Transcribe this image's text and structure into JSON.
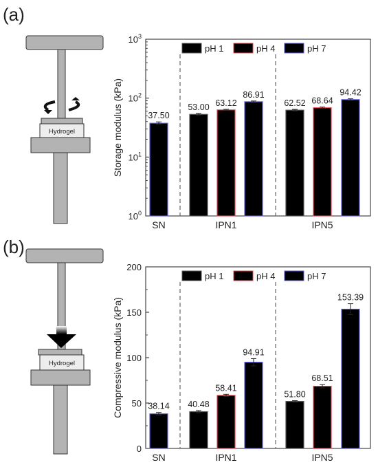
{
  "panels": [
    {
      "letter": "(a)",
      "sample_label": "Hydrogel",
      "action_icon": "rotation-arrows-icon"
    },
    {
      "letter": "(b)",
      "sample_label": "Hydrogel",
      "action_icon": "compression-arrow-icon"
    }
  ],
  "colors": {
    "pH 1": "#555555",
    "pH 4": "#e8474b",
    "pH 7": "#5a5ae6"
  },
  "chart_data": [
    {
      "type": "bar",
      "ylabel": "Storage modulus (kPa)",
      "yscale": "log",
      "ylim": [
        1,
        1000
      ],
      "yticks": [
        "10^0",
        "10^1",
        "10^2",
        "10^3"
      ],
      "groups": [
        "SN",
        "IPN1",
        "IPN5"
      ],
      "legend": [
        "pH 1",
        "pH 4",
        "pH 7"
      ],
      "legend_position": "top",
      "bars": [
        {
          "group": "SN",
          "series": "pH 7",
          "value": 37.5,
          "label": "37.50",
          "error": 2.0
        },
        {
          "group": "IPN1",
          "series": "pH 1",
          "value": 53.0,
          "label": "53.00",
          "error": 2.0
        },
        {
          "group": "IPN1",
          "series": "pH 4",
          "value": 63.12,
          "label": "63.12",
          "error": 1.5
        },
        {
          "group": "IPN1",
          "series": "pH 7",
          "value": 86.91,
          "label": "86.91",
          "error": 2.5
        },
        {
          "group": "IPN5",
          "series": "pH 1",
          "value": 62.52,
          "label": "62.52",
          "error": 2.0
        },
        {
          "group": "IPN5",
          "series": "pH 4",
          "value": 68.64,
          "label": "68.64",
          "error": 2.0
        },
        {
          "group": "IPN5",
          "series": "pH 7",
          "value": 94.42,
          "label": "94.42",
          "error": 3.0
        }
      ]
    },
    {
      "type": "bar",
      "ylabel": "Compressive modulus (kPa)",
      "yscale": "linear",
      "ylim": [
        0,
        200
      ],
      "yticks": [
        "0",
        "50",
        "100",
        "150",
        "200"
      ],
      "groups": [
        "SN",
        "IPN1",
        "IPN5"
      ],
      "legend": [
        "pH 1",
        "pH 4",
        "pH 7"
      ],
      "legend_position": "top",
      "bars": [
        {
          "group": "SN",
          "series": "pH 7",
          "value": 38.14,
          "label": "38.14",
          "error": 1.5
        },
        {
          "group": "IPN1",
          "series": "pH 1",
          "value": 40.48,
          "label": "40.48",
          "error": 1.2
        },
        {
          "group": "IPN1",
          "series": "pH 4",
          "value": 58.41,
          "label": "58.41",
          "error": 1.2
        },
        {
          "group": "IPN1",
          "series": "pH 7",
          "value": 94.91,
          "label": "94.91",
          "error": 4.0
        },
        {
          "group": "IPN5",
          "series": "pH 1",
          "value": 51.8,
          "label": "51.80",
          "error": 0.8
        },
        {
          "group": "IPN5",
          "series": "pH 4",
          "value": 68.51,
          "label": "68.51",
          "error": 1.8
        },
        {
          "group": "IPN5",
          "series": "pH 7",
          "value": 153.39,
          "label": "153.39",
          "error": 6.0
        }
      ]
    }
  ]
}
